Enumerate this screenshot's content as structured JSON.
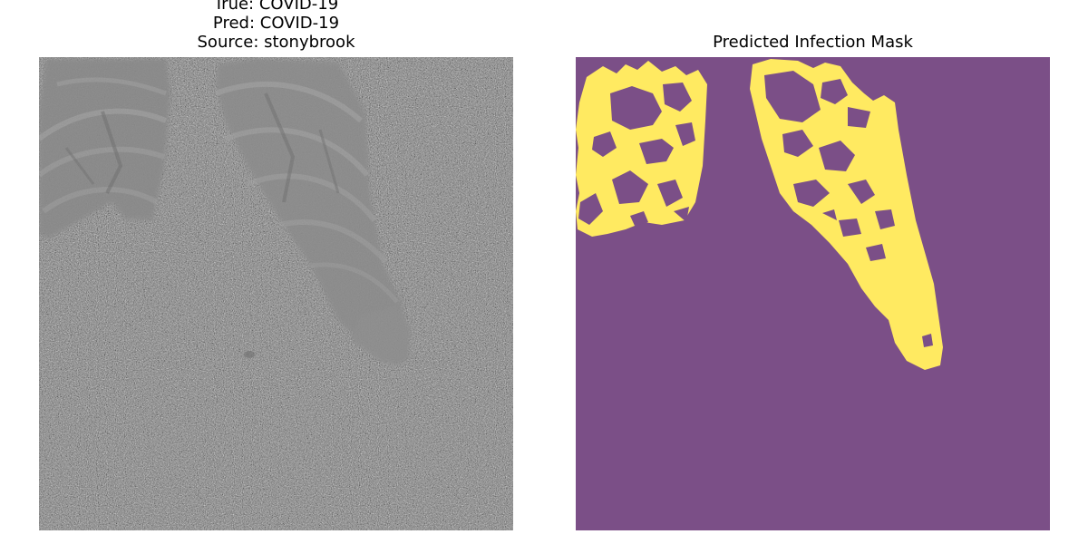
{
  "figure": {
    "left_panel": {
      "title_lines": [
        "True: COVID-19",
        "Pred: COVID-19",
        "Source: stonybrook"
      ],
      "image": "chest-xray-noisy"
    },
    "right_panel": {
      "title": "Predicted Infection Mask",
      "image": "infection-mask",
      "colors": {
        "background": "#7b4f87",
        "infection": "#ffea61"
      }
    }
  }
}
